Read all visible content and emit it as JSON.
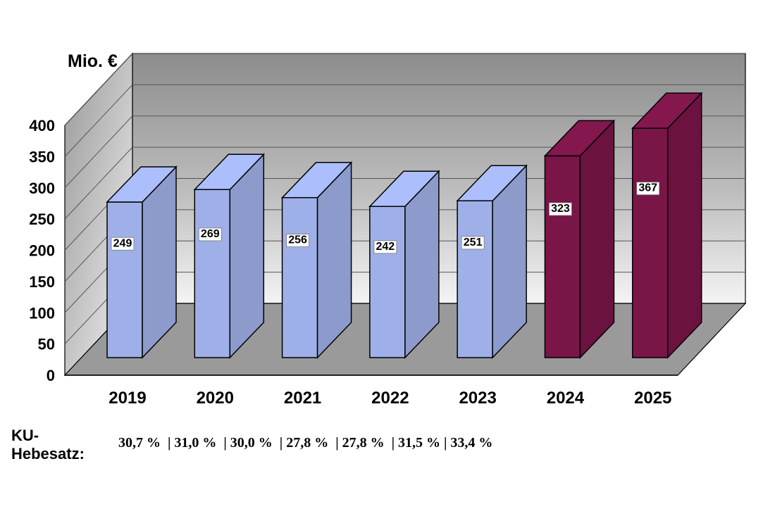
{
  "chart_data": {
    "type": "bar",
    "unit_label": "Mio. €",
    "categories": [
      "2019",
      "2020",
      "2021",
      "2022",
      "2023",
      "2024",
      "2025"
    ],
    "values": [
      249,
      269,
      256,
      242,
      251,
      323,
      367
    ],
    "data_labels": [
      "249",
      "269",
      "256",
      "242",
      "251",
      "323",
      "367"
    ],
    "ylim": [
      0,
      400
    ],
    "y_ticks": [
      "0",
      "50",
      "100",
      "150",
      "200",
      "250",
      "300",
      "350",
      "400"
    ],
    "colors": [
      "#9fb0e8",
      "#9fb0e8",
      "#9fb0e8",
      "#9fb0e8",
      "#9fb0e8",
      "#7a1548",
      "#7a1548"
    ],
    "grid": true
  },
  "footer": {
    "label": "KU-\nHebesatz:",
    "rates": "30,7 %  | 31,0 %  | 30,0 %  | 27,8 %  | 27,8 %  | 31,5 % | 33,4 %"
  }
}
